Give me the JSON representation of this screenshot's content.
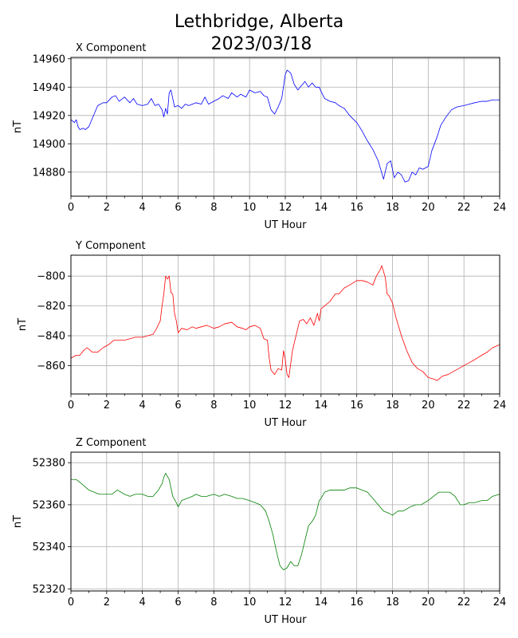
{
  "figure": {
    "title_line1": "Lethbridge, Alberta",
    "title_line2": "2023/03/18"
  },
  "chart_data": [
    {
      "type": "line",
      "title": "X Component",
      "xlabel": "UT Hour",
      "ylabel": "nT",
      "xlim": [
        0,
        24
      ],
      "ylim": [
        14863,
        14961
      ],
      "xticks": [
        0,
        2,
        4,
        6,
        8,
        10,
        12,
        14,
        16,
        18,
        20,
        22,
        24
      ],
      "yticks": [
        14880,
        14900,
        14920,
        14940,
        14960
      ],
      "grid": true,
      "color": "#0000ff",
      "series": [
        {
          "x": [
            0,
            0.2,
            0.3,
            0.4,
            0.5,
            0.7,
            0.8,
            1.0,
            1.2,
            1.5,
            1.8,
            2.0,
            2.3,
            2.5,
            2.7,
            3.0,
            3.3,
            3.5,
            3.7,
            4.0,
            4.3,
            4.5,
            4.7,
            4.9,
            5.1,
            5.2,
            5.3,
            5.4,
            5.5,
            5.6,
            5.8,
            6.0,
            6.2,
            6.4,
            6.6,
            6.8,
            7.0,
            7.3,
            7.5,
            7.7,
            8.0,
            8.3,
            8.5,
            8.8,
            9.0,
            9.3,
            9.5,
            9.8,
            10.0,
            10.3,
            10.6,
            10.8,
            11.0,
            11.2,
            11.4,
            11.6,
            11.8,
            12.0,
            12.1,
            12.3,
            12.5,
            12.7,
            12.9,
            13.1,
            13.3,
            13.5,
            13.7,
            13.9,
            14.0,
            14.2,
            14.5,
            14.8,
            15.0,
            15.3,
            15.6,
            16.0,
            16.3,
            16.6,
            16.9,
            17.2,
            17.5,
            17.7,
            17.9,
            18.1,
            18.3,
            18.5,
            18.7,
            18.9,
            19.1,
            19.3,
            19.5,
            19.7,
            20.0,
            20.2,
            20.5,
            20.7,
            21.0,
            21.3,
            21.6,
            22.0,
            22.3,
            22.6,
            23.0,
            23.3,
            23.6,
            24.0
          ],
          "y": [
            14917,
            14915,
            14917,
            14912,
            14910,
            14911,
            14910,
            14912,
            14918,
            14927,
            14929,
            14929,
            14933,
            14934,
            14930,
            14933,
            14929,
            14932,
            14928,
            14927,
            14928,
            14932,
            14927,
            14928,
            14924,
            14919,
            14925,
            14921,
            14936,
            14938,
            14926,
            14927,
            14925,
            14928,
            14927,
            14928,
            14929,
            14928,
            14933,
            14928,
            14930,
            14932,
            14934,
            14932,
            14936,
            14933,
            14935,
            14933,
            14938,
            14936,
            14937,
            14934,
            14933,
            14924,
            14921,
            14926,
            14932,
            14949,
            14952,
            14950,
            14942,
            14938,
            14941,
            14944,
            14940,
            14943,
            14940,
            14940,
            14937,
            14932,
            14930,
            14929,
            14927,
            14925,
            14920,
            14915,
            14909,
            14902,
            14896,
            14888,
            14875,
            14886,
            14888,
            14876,
            14880,
            14878,
            14873,
            14874,
            14880,
            14878,
            14883,
            14882,
            14884,
            14895,
            14905,
            14913,
            14919,
            14924,
            14926,
            14927,
            14928,
            14929,
            14930,
            14930,
            14931,
            14931
          ]
        }
      ]
    },
    {
      "type": "line",
      "title": "Y Component",
      "xlabel": "UT Hour",
      "ylabel": "nT",
      "xlim": [
        0,
        24
      ],
      "ylim": [
        -879,
        -786
      ],
      "xticks": [
        0,
        2,
        4,
        6,
        8,
        10,
        12,
        14,
        16,
        18,
        20,
        22,
        24
      ],
      "yticks": [
        -860,
        -840,
        -820,
        -800
      ],
      "grid": true,
      "color": "#ff0000",
      "series": [
        {
          "x": [
            0,
            0.3,
            0.5,
            0.7,
            0.9,
            1.2,
            1.5,
            1.8,
            2.1,
            2.4,
            2.6,
            3.0,
            3.3,
            3.6,
            4.0,
            4.3,
            4.6,
            4.8,
            5.0,
            5.1,
            5.2,
            5.3,
            5.4,
            5.5,
            5.6,
            5.7,
            5.8,
            5.9,
            6.0,
            6.2,
            6.5,
            6.8,
            7.0,
            7.3,
            7.6,
            8.0,
            8.3,
            8.6,
            9.0,
            9.3,
            9.6,
            9.8,
            10.0,
            10.3,
            10.6,
            10.8,
            11.0,
            11.1,
            11.2,
            11.4,
            11.6,
            11.8,
            11.9,
            12.0,
            12.1,
            12.2,
            12.4,
            12.6,
            12.8,
            13.0,
            13.2,
            13.4,
            13.6,
            13.8,
            13.9,
            14.0,
            14.2,
            14.5,
            14.8,
            15.0,
            15.3,
            15.6,
            16.0,
            16.3,
            16.6,
            16.9,
            17.1,
            17.3,
            17.4,
            17.5,
            17.6,
            17.7,
            17.8,
            18.0,
            18.2,
            18.5,
            18.8,
            19.1,
            19.4,
            19.7,
            20.0,
            20.3,
            20.5,
            20.8,
            21.1,
            21.4,
            21.7,
            22.0,
            22.3,
            22.6,
            23.0,
            23.3,
            23.6,
            24.0
          ],
          "y": [
            -855,
            -853,
            -853,
            -850,
            -848,
            -851,
            -851,
            -848,
            -846,
            -843,
            -843,
            -843,
            -842,
            -841,
            -841,
            -840,
            -839,
            -835,
            -830,
            -820,
            -812,
            -800,
            -802,
            -800,
            -811,
            -812,
            -825,
            -830,
            -838,
            -835,
            -836,
            -834,
            -835,
            -834,
            -833,
            -835,
            -834,
            -832,
            -831,
            -834,
            -835,
            -836,
            -834,
            -833,
            -835,
            -842,
            -843,
            -855,
            -863,
            -866,
            -862,
            -863,
            -850,
            -856,
            -866,
            -868,
            -850,
            -840,
            -830,
            -829,
            -832,
            -828,
            -833,
            -825,
            -830,
            -822,
            -820,
            -817,
            -812,
            -812,
            -808,
            -806,
            -803,
            -803,
            -804,
            -806,
            -800,
            -796,
            -793,
            -797,
            -801,
            -812,
            -813,
            -818,
            -828,
            -840,
            -850,
            -858,
            -862,
            -864,
            -868,
            -869,
            -870,
            -867,
            -866,
            -864,
            -862,
            -860,
            -858,
            -856,
            -853,
            -851,
            -848,
            -846
          ]
        }
      ]
    },
    {
      "type": "line",
      "title": "Z Component",
      "xlabel": "UT Hour",
      "ylabel": "nT",
      "xlim": [
        0,
        24
      ],
      "ylim": [
        52319,
        52385
      ],
      "xticks": [
        0,
        2,
        4,
        6,
        8,
        10,
        12,
        14,
        16,
        18,
        20,
        22,
        24
      ],
      "yticks": [
        52320,
        52340,
        52360,
        52380
      ],
      "grid": true,
      "color": "#008000",
      "series": [
        {
          "x": [
            0,
            0.3,
            0.6,
            1.0,
            1.3,
            1.6,
            2.0,
            2.3,
            2.6,
            3.0,
            3.3,
            3.6,
            4.0,
            4.3,
            4.6,
            4.9,
            5.1,
            5.2,
            5.3,
            5.5,
            5.7,
            5.9,
            6.0,
            6.2,
            6.5,
            6.8,
            7.0,
            7.3,
            7.6,
            8.0,
            8.3,
            8.6,
            9.0,
            9.3,
            9.6,
            10.0,
            10.3,
            10.6,
            10.9,
            11.1,
            11.3,
            11.5,
            11.7,
            11.9,
            12.1,
            12.3,
            12.5,
            12.7,
            12.9,
            13.1,
            13.3,
            13.5,
            13.7,
            13.9,
            14.0,
            14.2,
            14.5,
            14.8,
            15.0,
            15.3,
            15.6,
            16.0,
            16.3,
            16.6,
            16.9,
            17.2,
            17.5,
            17.8,
            18.0,
            18.3,
            18.6,
            19.0,
            19.3,
            19.6,
            20.0,
            20.3,
            20.6,
            21.0,
            21.2,
            21.5,
            21.8,
            22.0,
            22.3,
            22.6,
            23.0,
            23.3,
            23.6,
            24.0
          ],
          "y": [
            52372,
            52372,
            52370,
            52367,
            52366,
            52365,
            52365,
            52365,
            52367,
            52365,
            52364,
            52365,
            52365,
            52364,
            52364,
            52367,
            52370,
            52373,
            52375,
            52372,
            52364,
            52361,
            52359,
            52362,
            52363,
            52364,
            52365,
            52364,
            52364,
            52365,
            52364,
            52365,
            52364,
            52363,
            52363,
            52362,
            52361,
            52360,
            52357,
            52352,
            52346,
            52338,
            52331,
            52329,
            52330,
            52333,
            52331,
            52331,
            52336,
            52343,
            52350,
            52352,
            52355,
            52362,
            52363,
            52366,
            52367,
            52367,
            52367,
            52367,
            52368,
            52368,
            52367,
            52366,
            52363,
            52360,
            52357,
            52356,
            52355,
            52357,
            52357,
            52359,
            52360,
            52360,
            52362,
            52364,
            52366,
            52366,
            52366,
            52364,
            52360,
            52360,
            52361,
            52361,
            52362,
            52362,
            52364,
            52365
          ]
        }
      ]
    }
  ]
}
